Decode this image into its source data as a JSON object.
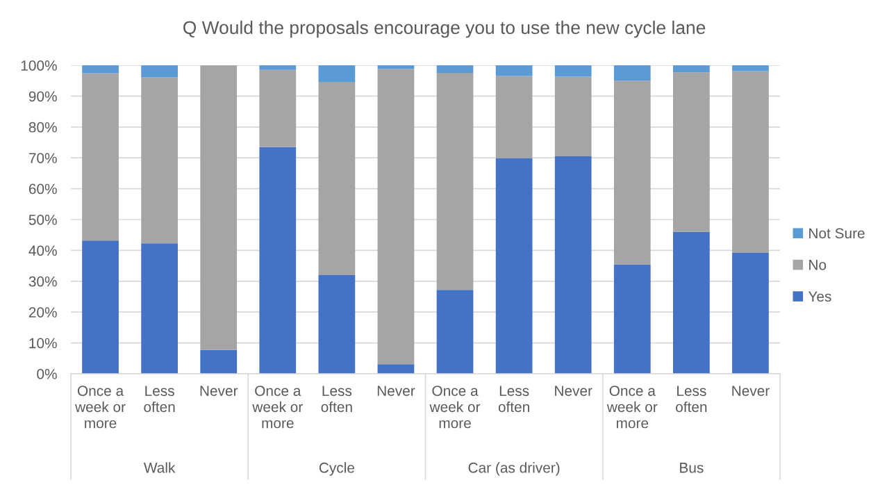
{
  "chart_data": {
    "type": "bar",
    "title": "Q Would the proposals encourage you to use the new cycle lane",
    "categories": [
      "Once a week or more",
      "Less often",
      "Never",
      "Once a week or more",
      "Less often",
      "Never",
      "Once a week or more",
      "Less often",
      "Never",
      "Once a week or more",
      "Less often",
      "Never"
    ],
    "annotations": [
      "Walk",
      "Cycle",
      "Car (as driver)",
      "Bus"
    ],
    "stacked": true,
    "series": [
      {
        "name": "Yes",
        "color": "#4472c4",
        "values": [
          43.2,
          42.3,
          7.7,
          73.5,
          32.0,
          3.1,
          27.2,
          69.8,
          70.5,
          35.4,
          46.0,
          39.2
        ]
      },
      {
        "name": "No",
        "color": "#a5a5a5",
        "values": [
          54.2,
          53.8,
          92.3,
          25.0,
          62.6,
          95.7,
          70.3,
          26.7,
          25.8,
          59.6,
          51.7,
          58.9
        ]
      },
      {
        "name": "Not Sure",
        "color": "#5b9bd5",
        "values": [
          2.6,
          3.9,
          0,
          1.5,
          5.4,
          1.2,
          2.5,
          3.5,
          3.7,
          5.0,
          2.3,
          1.9
        ]
      }
    ],
    "ylim": [
      0,
      100
    ],
    "yticks": [
      {
        "value": 0,
        "label": "0%"
      },
      {
        "value": 10,
        "label": "10%"
      },
      {
        "value": 20,
        "label": "20%"
      },
      {
        "value": 30,
        "label": "30%"
      },
      {
        "value": 40,
        "label": "40%"
      },
      {
        "value": 50,
        "label": "50%"
      },
      {
        "value": 60,
        "label": "60%"
      },
      {
        "value": 70,
        "label": "70%"
      },
      {
        "value": 80,
        "label": "80%"
      },
      {
        "value": 90,
        "label": "90%"
      },
      {
        "value": 100,
        "label": "100%"
      }
    ],
    "grid": "y",
    "legend": "right"
  }
}
